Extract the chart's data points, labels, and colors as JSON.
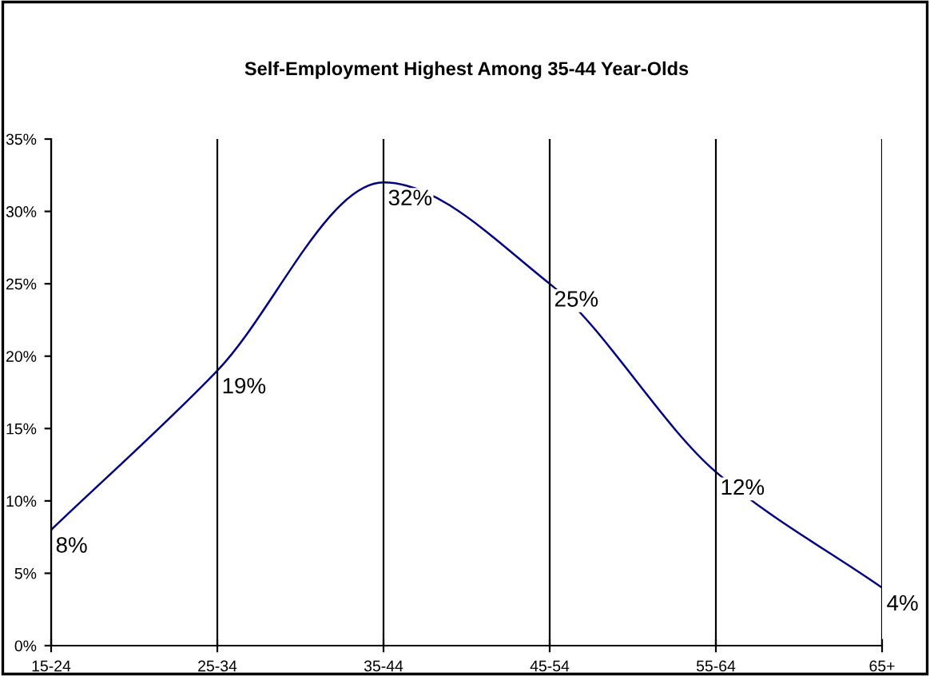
{
  "chart_data": {
    "type": "line",
    "title": "Self-Employment Highest Among 35-44 Year-Olds",
    "categories": [
      "15-24",
      "25-34",
      "35-44",
      "45-54",
      "55-64",
      "65+"
    ],
    "series": [
      {
        "color": "#000080",
        "values": [
          8,
          19,
          32,
          25,
          12,
          4
        ],
        "value_labels": [
          "8%",
          "19%",
          "32%",
          "25%",
          "12%",
          "4%"
        ]
      }
    ],
    "ylim": [
      0,
      35
    ],
    "yticks": [
      {
        "value": 0,
        "label": "0%"
      },
      {
        "value": 5,
        "label": "5%"
      },
      {
        "value": 10,
        "label": "10%"
      },
      {
        "value": 15,
        "label": "15%"
      },
      {
        "value": 20,
        "label": "20%"
      },
      {
        "value": 25,
        "label": "25%"
      },
      {
        "value": 30,
        "label": "30%"
      },
      {
        "value": 35,
        "label": "35%"
      }
    ],
    "grid": "x",
    "legend": false,
    "marker": "none",
    "line_style": "solid"
  }
}
